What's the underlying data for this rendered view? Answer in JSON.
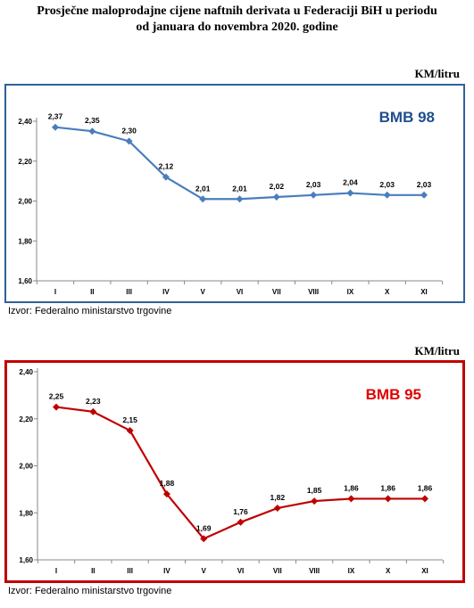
{
  "title_line1": "Prosječne maloprodajne cijene naftnih derivata u Federaciji BiH u periodu",
  "title_line2": "od januara do novembra 2020. godine",
  "chart_data": [
    {
      "type": "line",
      "unit": "KM/litru",
      "badge": "BMB 98",
      "source": "Izvor: Federalno ministarstvo trgovine",
      "categories": [
        "I",
        "II",
        "III",
        "IV",
        "V",
        "VI",
        "VII",
        "VIII",
        "IX",
        "X",
        "XI"
      ],
      "values": [
        2.37,
        2.35,
        2.3,
        2.12,
        2.01,
        2.01,
        2.02,
        2.03,
        2.04,
        2.03,
        2.03
      ],
      "value_labels": [
        "2,37",
        "2,35",
        "2,30",
        "2,12",
        "2,01",
        "2,01",
        "2,02",
        "2,03",
        "2,04",
        "2,03",
        "2,03"
      ],
      "ylim": [
        1.6,
        2.4
      ],
      "yticks": [
        1.6,
        1.8,
        2.0,
        2.2,
        2.4
      ],
      "ytick_labels": [
        "1,60",
        "1,80",
        "2,00",
        "2,20",
        "2,40"
      ],
      "grid": false,
      "color": "#4a7ebb",
      "frame_color": "#2f6199",
      "badge_color": "#1f4e8c"
    },
    {
      "type": "line",
      "unit": "KM/litru",
      "badge": "BMB 95",
      "source": "Izvor: Federalno ministarstvo trgovine",
      "categories": [
        "I",
        "II",
        "III",
        "IV",
        "V",
        "VI",
        "VII",
        "VIII",
        "IX",
        "X",
        "XI"
      ],
      "values": [
        2.25,
        2.23,
        2.15,
        1.88,
        1.69,
        1.76,
        1.82,
        1.85,
        1.86,
        1.86,
        1.86
      ],
      "value_labels": [
        "2,25",
        "2,23",
        "2,15",
        "1,88",
        "1,69",
        "1,76",
        "1,82",
        "1,85",
        "1,86",
        "1,86",
        "1,86"
      ],
      "ylim": [
        1.6,
        2.4
      ],
      "yticks": [
        1.6,
        1.8,
        2.0,
        2.2,
        2.4
      ],
      "ytick_labels": [
        "1,60",
        "1,80",
        "2,00",
        "2,20",
        "2,40"
      ],
      "grid": false,
      "color": "#c00000",
      "frame_color": "#c00000",
      "badge_color": "#e00000"
    }
  ]
}
